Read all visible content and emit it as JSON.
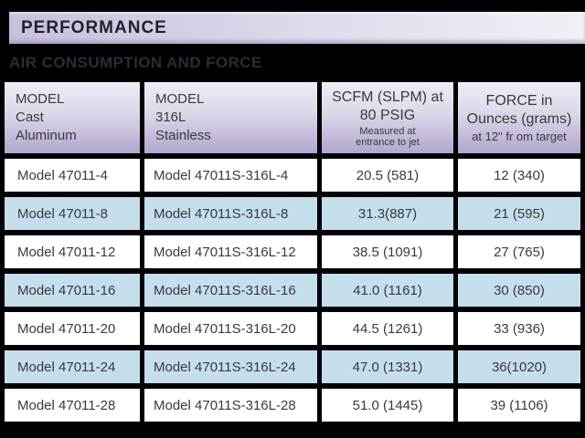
{
  "page": {
    "title": "PERFORMANCE",
    "subtitle": "AIR CONSUMPTION AND FORCE"
  },
  "table": {
    "columns": [
      {
        "name": "model-cast-aluminum",
        "lines": [
          "MODEL",
          "Cast",
          "Aluminum"
        ],
        "note_lines": []
      },
      {
        "name": "model-316l-stainless",
        "lines": [
          "MODEL",
          "316L",
          "Stainless"
        ],
        "note_lines": []
      },
      {
        "name": "scfm-at-80-psig",
        "lines": [
          "SCFM (SLPM) at",
          "80 PSIG"
        ],
        "note_lines": [
          "Measured at",
          "entrance to jet"
        ]
      },
      {
        "name": "force-in-ounces",
        "lines": [
          "FORCE  in",
          "Ounces (grams)"
        ],
        "note_lines": [
          "at 12\" fr om target"
        ]
      }
    ],
    "rows": [
      [
        "Model 47011-4",
        "Model 47011S-316L-4",
        "20.5 (581)",
        "12 (340)"
      ],
      [
        "Model 47011-8",
        "Model 47011S-316L-8",
        "31.3(887)",
        "21 (595)"
      ],
      [
        "Model 47011-12",
        "Model 47011S-316L-12",
        "38.5 (1091)",
        "27 (765)"
      ],
      [
        "Model 47011-16",
        "Model 47011S-316L-16",
        "41.0 (1161)",
        "30 (850)"
      ],
      [
        "Model 47011-20",
        "Model 47011S-316L-20",
        "44.5 (1261)",
        "33 (936)"
      ],
      [
        "Model 47011-24",
        "Model 47011S-316L-24",
        "47.0 (1331)",
        "36(1020)"
      ],
      [
        "Model 47011-28",
        "Model 47011S-316L-28",
        "51.0 (1445)",
        "39 (1106)"
      ]
    ]
  },
  "colors": {
    "background": "#000000",
    "banner_gradient_start": "#c8bfdc",
    "banner_gradient_end": "#f2f0f6",
    "header_gradient_top": "#efecf5",
    "header_gradient_bottom": "#b1a5cd",
    "row_white": "#ffffff",
    "row_alt_blue": "#c5deec",
    "text": "#3a3a3a",
    "title_text": "#232229"
  }
}
